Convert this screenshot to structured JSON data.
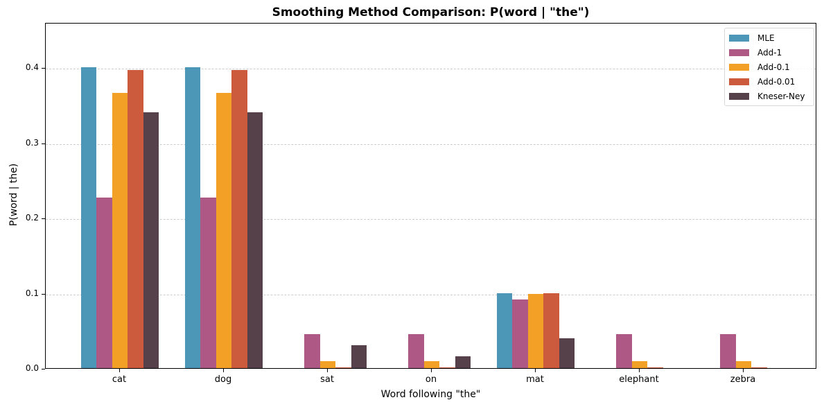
{
  "chart_data": {
    "type": "bar",
    "title": "Smoothing Method Comparison: P(word | \"the\")",
    "xlabel": "Word following \"the\"",
    "ylabel": "P(word | the)",
    "ylim": [
      0,
      0.46
    ],
    "yticks": [
      "0.0",
      "0.1",
      "0.2",
      "0.3",
      "0.4"
    ],
    "grid": "y-dashed",
    "legend_position": "upper right",
    "categories": [
      "cat",
      "dog",
      "sat",
      "on",
      "mat",
      "elephant",
      "zebra"
    ],
    "series": [
      {
        "name": "MLE",
        "color": "#4c96b7",
        "values": [
          0.4,
          0.4,
          0.0,
          0.0,
          0.1,
          0.0,
          0.0
        ]
      },
      {
        "name": "Add-1",
        "color": "#ae5886",
        "values": [
          0.227,
          0.227,
          0.0455,
          0.0455,
          0.0909,
          0.0455,
          0.0455
        ]
      },
      {
        "name": "Add-0.1",
        "color": "#f2a026",
        "values": [
          0.366,
          0.366,
          0.0092,
          0.0092,
          0.0982,
          0.0092,
          0.0092
        ]
      },
      {
        "name": "Add-0.01",
        "color": "#cc5a3c",
        "values": [
          0.396,
          0.396,
          0.001,
          0.001,
          0.0998,
          0.001,
          0.001
        ]
      },
      {
        "name": "Kneser-Ney",
        "color": "#56414b",
        "values": [
          0.34,
          0.34,
          0.03,
          0.0155,
          0.04,
          0.0,
          0.0
        ]
      }
    ]
  }
}
